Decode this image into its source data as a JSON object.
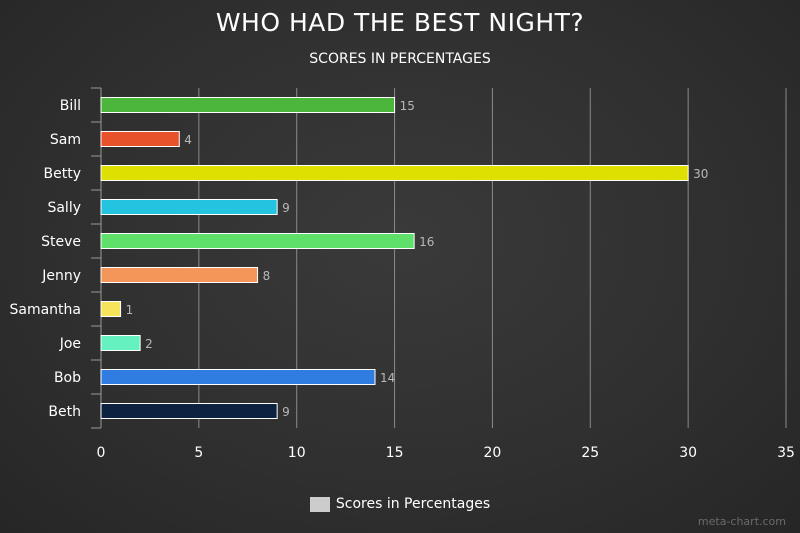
{
  "chart_data": {
    "type": "bar",
    "orientation": "horizontal",
    "title": "WHO HAD THE BEST NIGHT?",
    "subtitle": "SCORES IN PERCENTAGES",
    "categories": [
      "Bill",
      "Sam",
      "Betty",
      "Sally",
      "Steve",
      "Jenny",
      "Samantha",
      "Joe",
      "Bob",
      "Beth"
    ],
    "values": [
      15,
      4,
      30,
      9,
      16,
      8,
      1,
      2,
      14,
      9
    ],
    "colors": [
      "#4cb63c",
      "#e8522a",
      "#dde000",
      "#24c3df",
      "#5fe06a",
      "#f4965a",
      "#f6e55a",
      "#66f2c0",
      "#2f7de0",
      "#0d2240"
    ],
    "series_name": "Scores in Percentages",
    "xlim": [
      0,
      35
    ],
    "xticks": [
      0,
      5,
      10,
      15,
      20,
      25,
      30,
      35
    ],
    "grid": true,
    "data_labels": true,
    "legend_position": "bottom-center",
    "legend_color": "#cccccc",
    "bar_outline": "#ffffff",
    "label_color": "#b8b8b8",
    "grid_color": "#8a8a8a"
  },
  "credit": "meta-chart.com"
}
